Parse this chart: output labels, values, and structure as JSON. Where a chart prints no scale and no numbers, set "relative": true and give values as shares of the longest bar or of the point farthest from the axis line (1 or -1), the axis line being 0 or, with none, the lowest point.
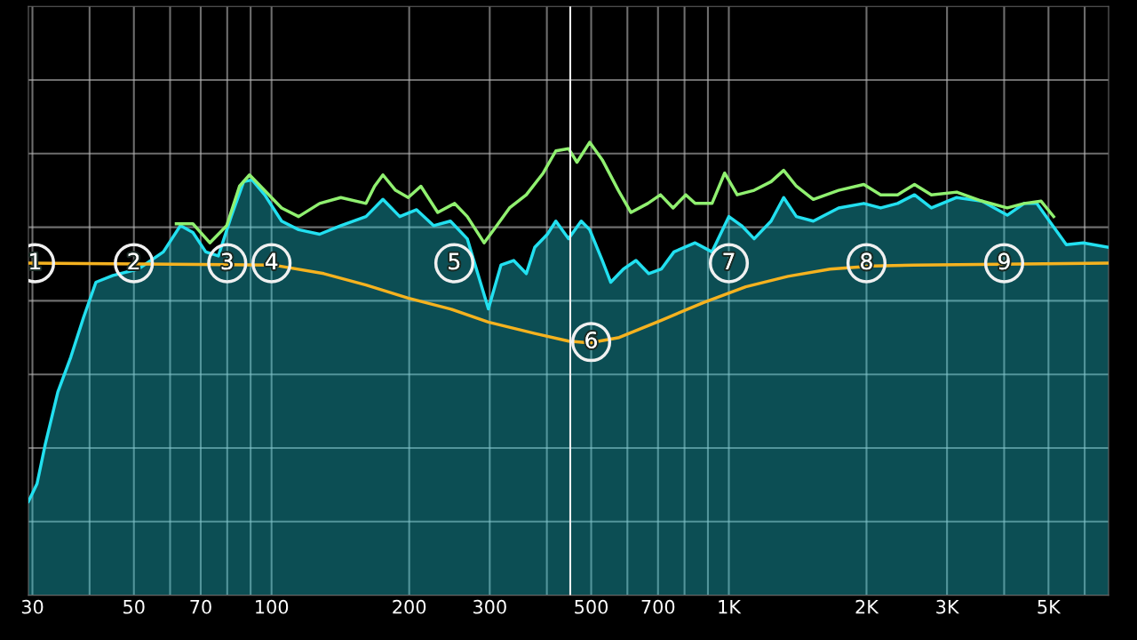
{
  "chart_data": {
    "type": "line",
    "relative": true,
    "log": "x",
    "grid": true,
    "tick_labels": "x",
    "legend": false,
    "xlim": [
      29.4,
      6767
    ],
    "xticks": [
      30,
      {
        "value": 40,
        "label": null
      },
      50,
      {
        "value": 60,
        "label": null
      },
      70,
      {
        "value": 80,
        "label": null
      },
      {
        "value": 90,
        "label": null
      },
      100,
      200,
      300,
      {
        "value": 400,
        "label": null
      },
      500,
      {
        "value": 600,
        "label": null
      },
      700,
      {
        "value": 800,
        "label": null
      },
      {
        "value": 900,
        "label": null
      },
      {
        "value": 1000,
        "label": "1K"
      },
      {
        "value": 2000,
        "label": "2K"
      },
      {
        "value": 3000,
        "label": "3K"
      },
      {
        "value": 4000,
        "label": null
      },
      {
        "value": 5000,
        "label": "5K"
      },
      {
        "value": 6000,
        "label": null
      }
    ],
    "series": [
      {
        "type": "area",
        "color": "#22e0f0",
        "x": [
          29.4,
          30.7,
          32.0,
          34.1,
          36.4,
          38.8,
          41.3,
          45.0,
          51.1,
          58.0,
          63.2,
          67.3,
          71.8,
          76.5,
          81.6,
          86.9,
          90.7,
          96.6,
          105.2,
          114.6,
          127.4,
          141.7,
          160.9,
          175.2,
          190.7,
          207.6,
          226.1,
          246.1,
          267.9,
          298.0,
          317.5,
          338.4,
          360.7,
          376.3,
          401.1,
          418.5,
          446.1,
          475.5,
          496.2,
          528.9,
          551.8,
          588.0,
          626.6,
          667.8,
          711.8,
          758.6,
          843.9,
          918.8,
          1000,
          1066,
          1136,
          1237,
          1318,
          1405,
          1530,
          1738,
          1973,
          2148,
          2339,
          2547,
          2773,
          3150,
          3578,
          4063,
          4424,
          4714,
          5024,
          5470,
          5956,
          6767
        ],
        "values": [
          0.207,
          0.246,
          0.333,
          0.449,
          0.526,
          0.613,
          0.691,
          0.706,
          0.72,
          0.758,
          0.816,
          0.801,
          0.758,
          0.749,
          0.836,
          0.913,
          0.917,
          0.884,
          0.826,
          0.807,
          0.797,
          0.816,
          0.836,
          0.874,
          0.836,
          0.851,
          0.816,
          0.826,
          0.787,
          0.632,
          0.729,
          0.739,
          0.71,
          0.768,
          0.797,
          0.826,
          0.787,
          0.826,
          0.807,
          0.739,
          0.691,
          0.72,
          0.739,
          0.71,
          0.72,
          0.758,
          0.778,
          0.758,
          0.836,
          0.816,
          0.787,
          0.826,
          0.878,
          0.836,
          0.826,
          0.855,
          0.865,
          0.855,
          0.865,
          0.884,
          0.855,
          0.878,
          0.87,
          0.839,
          0.865,
          0.865,
          0.826,
          0.774,
          0.778,
          0.768
        ]
      },
      {
        "type": "line",
        "color": "#90f070",
        "x": [
          61.9,
          67.3,
          73.3,
          79.8,
          85.1,
          89.5,
          94.6,
          105.2,
          114.6,
          127.4,
          141.7,
          160.9,
          168.0,
          175.2,
          186.7,
          199.0,
          212.1,
          230.9,
          251.4,
          267.9,
          291.6,
          310.9,
          331.4,
          360.7,
          392.7,
          418.5,
          446.1,
          465.5,
          496.2,
          528.9,
          573.2,
          611.0,
          664.9,
          708.8,
          755.3,
          805.3,
          843.9,
          918.8,
          979,
          1043,
          1136,
          1237,
          1318,
          1405,
          1530,
          1738,
          1973,
          2148,
          2339,
          2547,
          2773,
          3150,
          3578,
          4063,
          4424,
          4818,
          5132
        ],
        "values": [
          0.82,
          0.82,
          0.778,
          0.816,
          0.903,
          0.928,
          0.903,
          0.855,
          0.836,
          0.865,
          0.878,
          0.865,
          0.903,
          0.928,
          0.894,
          0.878,
          0.903,
          0.845,
          0.865,
          0.836,
          0.778,
          0.816,
          0.855,
          0.884,
          0.932,
          0.981,
          0.986,
          0.956,
          1.0,
          0.961,
          0.894,
          0.845,
          0.865,
          0.884,
          0.855,
          0.884,
          0.865,
          0.865,
          0.932,
          0.884,
          0.894,
          0.913,
          0.938,
          0.903,
          0.874,
          0.894,
          0.907,
          0.884,
          0.884,
          0.907,
          0.884,
          0.89,
          0.87,
          0.855,
          0.865,
          0.87,
          0.836
        ]
      },
      {
        "color": "#f5b21f",
        "x": [
          29.4,
          100.9,
          130.1,
          160.9,
          199.0,
          246.1,
          298.0,
          376.3,
          446.1,
          496.2,
          575.6,
          711.8,
          880.4,
          1089,
          1347,
          1665,
          2060,
          2547,
          6767
        ],
        "values": [
          0.733,
          0.729,
          0.71,
          0.685,
          0.656,
          0.632,
          0.603,
          0.578,
          0.561,
          0.557,
          0.569,
          0.607,
          0.646,
          0.681,
          0.704,
          0.72,
          0.727,
          0.729,
          0.733
        ]
      }
    ],
    "ref_lines": [
      {
        "axis": "x",
        "value": 450,
        "color": "#f0f0f0"
      }
    ],
    "annotations": [
      {
        "text": "1",
        "x": 30.4,
        "y": 0.733
      },
      {
        "text": "2",
        "x": 50,
        "y": 0.733
      },
      {
        "text": "3",
        "x": 80,
        "y": 0.733
      },
      {
        "text": "4",
        "x": 100,
        "y": 0.733
      },
      {
        "text": "5",
        "x": 251,
        "y": 0.733
      },
      {
        "text": "6",
        "x": 500,
        "y": 0.559
      },
      {
        "text": "7",
        "x": 1000,
        "y": 0.733
      },
      {
        "text": "8",
        "x": 2000,
        "y": 0.733
      },
      {
        "text": "9",
        "x": 4000,
        "y": 0.733
      }
    ]
  }
}
